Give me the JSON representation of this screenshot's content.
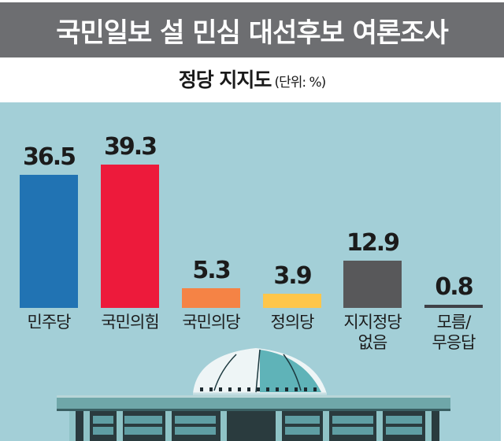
{
  "header": {
    "title": "국민일보 설 민심 대선후보 여론조사"
  },
  "subtitle": {
    "title": "정당 지지도",
    "unit": "(단위: %)"
  },
  "colors": {
    "header_bg": "#6d6e71",
    "panel_bg": "#a3cfd7",
    "democratic": "#2173b3",
    "ppp": "#ed1a3b",
    "peoples": "#f58345",
    "justice": "#fec64a",
    "none": "#58585a",
    "unknown": "#3f4147"
  },
  "chart_data": {
    "type": "bar",
    "title": "국민일보 설 민심 대선후보 여론조사",
    "subtitle": "정당 지지도",
    "unit": "%",
    "xlabel": "",
    "ylabel": "",
    "ylim": [
      0,
      40
    ],
    "grid": false,
    "legend": "none",
    "categories": [
      "민주당",
      "국민의힘",
      "국민의당",
      "정의당",
      "지지정당 없음",
      "모름/무응답"
    ],
    "values": [
      36.5,
      39.3,
      5.3,
      3.9,
      12.9,
      0.8
    ],
    "value_labels": [
      "36.5",
      "39.3",
      "5.3",
      "3.9",
      "12.9",
      "0.8"
    ],
    "bar_colors": [
      "#2173b3",
      "#ed1a3b",
      "#f58345",
      "#fec64a",
      "#58585a",
      "#3f4147"
    ]
  },
  "bars": [
    {
      "label_line1": "민주당",
      "label_line2": "",
      "value": "36.5"
    },
    {
      "label_line1": "국민의힘",
      "label_line2": "",
      "value": "39.3"
    },
    {
      "label_line1": "국민의당",
      "label_line2": "",
      "value": "5.3"
    },
    {
      "label_line1": "정의당",
      "label_line2": "",
      "value": "3.9"
    },
    {
      "label_line1": "지지정당",
      "label_line2": "없음",
      "value": "12.9"
    },
    {
      "label_line1": "모름/",
      "label_line2": "무응답",
      "value": "0.8"
    }
  ]
}
